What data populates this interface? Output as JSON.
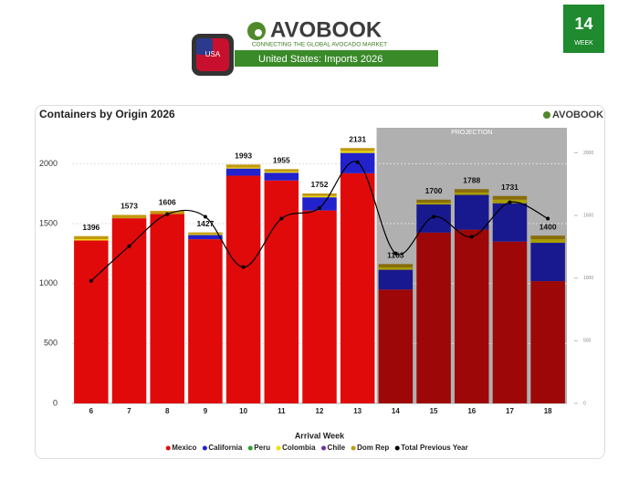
{
  "header": {
    "brand": "AVOBOOK",
    "tagline": "CONNECTING THE GLOBAL AVOCADO MARKET",
    "country": "United States",
    "subtitle": "Imports 2026",
    "flag_label": "USA",
    "week_number": "14",
    "week_label": "WEEK"
  },
  "chart_data": {
    "type": "stacked-bar",
    "title": "Containers by Origin 2026",
    "brand": "AVOBOOK",
    "x_label": "Arrival Week",
    "categories": [
      "6",
      "7",
      "8",
      "9",
      "10",
      "11",
      "12",
      "13",
      "14",
      "15",
      "16",
      "17",
      "18"
    ],
    "projection": {
      "label": "PROJECTION",
      "from": "14",
      "to": "18"
    },
    "series": [
      {
        "name": "Mexico",
        "color": "#e00a0a",
        "values": [
          1360,
          1545,
          1580,
          1370,
          1900,
          1860,
          1610,
          1920,
          950,
          1425,
          1450,
          1350,
          1020
        ]
      },
      {
        "name": "California",
        "color": "#2222cc",
        "values": [
          0,
          0,
          0,
          35,
          60,
          65,
          110,
          170,
          165,
          235,
          290,
          320,
          320
        ]
      },
      {
        "name": "Peru",
        "color": "#2ca02c",
        "values": [
          0,
          0,
          0,
          0,
          0,
          0,
          0,
          0,
          0,
          0,
          0,
          0,
          0
        ]
      },
      {
        "name": "Colombia",
        "color": "#f0e000",
        "values": [
          10,
          0,
          0,
          7,
          8,
          8,
          10,
          15,
          20,
          15,
          20,
          30,
          30
        ]
      },
      {
        "name": "Chile",
        "color": "#7030a0",
        "values": [
          0,
          0,
          0,
          0,
          0,
          0,
          0,
          0,
          0,
          0,
          0,
          0,
          0
        ]
      },
      {
        "name": "Dom Rep",
        "color": "#c29a10",
        "values": [
          26,
          28,
          26,
          15,
          25,
          22,
          22,
          26,
          28,
          25,
          28,
          31,
          30
        ]
      },
      {
        "name": "Total Previous Year",
        "color": "#000000",
        "axis": "y2",
        "type": "line",
        "values": [
          978,
          1255,
          1510,
          1490,
          1088,
          1475,
          1560,
          1925,
          1197,
          1490,
          1330,
          1605,
          1475
        ]
      }
    ],
    "totals": [
      1396,
      1573,
      1606,
      1427,
      1993,
      1955,
      1752,
      2131,
      1163,
      1700,
      1788,
      1731,
      1400
    ],
    "ylim": [
      0,
      2300
    ],
    "yticks": [
      0,
      500,
      1000,
      1500,
      2000
    ],
    "y2lim": [
      0,
      2200
    ],
    "y2ticks": [
      0,
      500,
      1000,
      1500,
      2000
    ],
    "grid": true
  }
}
